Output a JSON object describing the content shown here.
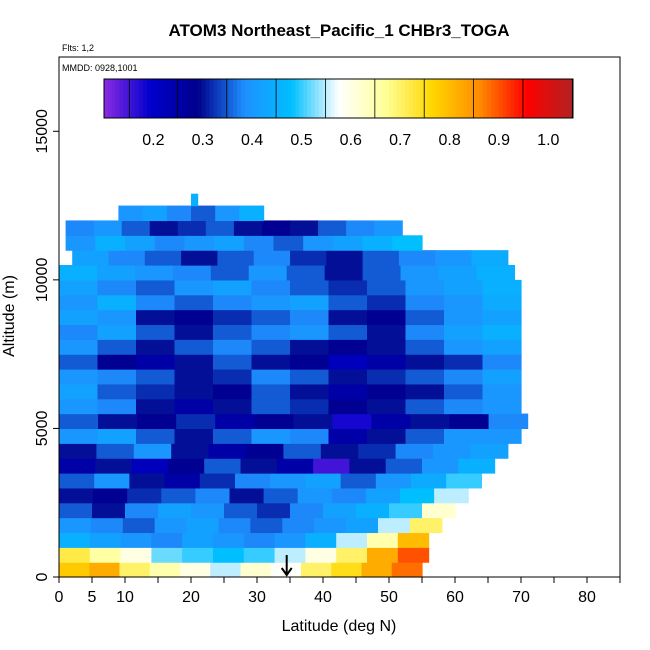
{
  "chart_data": {
    "type": "heatmap",
    "title": "ATOM3 Northeast_Pacific_1 CHBr3_TOGA",
    "flights_note": "Flts: 1,2",
    "dates_note": "MMDD: 0928,1001",
    "xlabel": "Latitude (deg N)",
    "ylabel": "Altitude (m)",
    "xlim": [
      0,
      85
    ],
    "ylim": [
      0,
      17500
    ],
    "x_ticks": [
      0,
      5,
      10,
      20,
      30,
      40,
      50,
      60,
      70,
      80
    ],
    "x_tick_labels": [
      "0",
      "5",
      "10",
      "20",
      "30",
      "40",
      "50",
      "60",
      "70",
      "80"
    ],
    "x_minor_ticks": [
      15,
      25,
      35,
      45,
      55,
      65,
      75,
      85
    ],
    "y_ticks": [
      0,
      5000,
      10000,
      15000
    ],
    "y_tick_labels": [
      "0",
      "5000",
      "10000",
      "15000"
    ],
    "colorbar": {
      "min": 0.1,
      "max": 1.05,
      "ticks": [
        0.2,
        0.3,
        0.4,
        0.5,
        0.6,
        0.7,
        0.8,
        0.9,
        1.0
      ],
      "tick_labels": [
        "0.2",
        "0.3",
        "0.4",
        "0.5",
        "0.6",
        "0.7",
        "0.8",
        "0.9",
        "1.0"
      ],
      "colors": [
        "#8a2be2",
        "#0000cd",
        "#00008b",
        "#1e90ff",
        "#00bfff",
        "#ffffff",
        "#ffff99",
        "#ffd700",
        "#ff8c00",
        "#ff0000",
        "#b22222"
      ]
    },
    "arrow_marker": {
      "latitude": 34.5,
      "altitude": 0
    },
    "altitude_bands": [
      {
        "alt": [
          0,
          500
        ],
        "lat": [
          0,
          55
        ],
        "values": [
          0.78,
          0.82,
          0.7,
          0.65,
          0.6,
          0.55,
          0.62,
          0.58,
          0.7,
          0.75,
          0.82,
          0.88
        ]
      },
      {
        "alt": [
          500,
          1000
        ],
        "lat": [
          0,
          56
        ],
        "values": [
          0.72,
          0.66,
          0.6,
          0.52,
          0.5,
          0.48,
          0.5,
          0.55,
          0.6,
          0.7,
          0.82,
          0.9
        ]
      },
      {
        "alt": [
          1000,
          1500
        ],
        "lat": [
          0,
          56
        ],
        "values": [
          0.45,
          0.42,
          0.4,
          0.38,
          0.42,
          0.4,
          0.38,
          0.4,
          0.45,
          0.55,
          0.65,
          0.8
        ]
      },
      {
        "alt": [
          1500,
          2000
        ],
        "lat": [
          0,
          58
        ],
        "values": [
          0.4,
          0.38,
          0.35,
          0.4,
          0.42,
          0.38,
          0.35,
          0.38,
          0.4,
          0.42,
          0.55,
          0.7
        ]
      },
      {
        "alt": [
          2000,
          2500
        ],
        "lat": [
          0,
          60
        ],
        "values": [
          0.35,
          0.3,
          0.38,
          0.42,
          0.4,
          0.35,
          0.32,
          0.38,
          0.42,
          0.45,
          0.5,
          0.62
        ]
      },
      {
        "alt": [
          2500,
          3000
        ],
        "lat": [
          0,
          62
        ],
        "values": [
          0.3,
          0.28,
          0.32,
          0.35,
          0.38,
          0.3,
          0.35,
          0.4,
          0.38,
          0.42,
          0.48,
          0.55
        ]
      },
      {
        "alt": [
          3000,
          3500
        ],
        "lat": [
          0,
          64
        ],
        "values": [
          0.35,
          0.4,
          0.3,
          0.25,
          0.32,
          0.38,
          0.4,
          0.42,
          0.35,
          0.4,
          0.44,
          0.5
        ]
      },
      {
        "alt": [
          3500,
          4000
        ],
        "lat": [
          0,
          66
        ],
        "values": [
          0.25,
          0.3,
          0.22,
          0.28,
          0.35,
          0.3,
          0.25,
          0.15,
          0.3,
          0.35,
          0.4,
          0.45
        ]
      },
      {
        "alt": [
          4000,
          4500
        ],
        "lat": [
          0,
          68
        ],
        "values": [
          0.3,
          0.35,
          0.4,
          0.3,
          0.25,
          0.28,
          0.35,
          0.3,
          0.32,
          0.38,
          0.4,
          0.42
        ]
      },
      {
        "alt": [
          4500,
          5000
        ],
        "lat": [
          0,
          70
        ],
        "values": [
          0.4,
          0.42,
          0.35,
          0.3,
          0.35,
          0.4,
          0.38,
          0.25,
          0.3,
          0.35,
          0.4,
          0.4
        ]
      },
      {
        "alt": [
          5000,
          5500
        ],
        "lat": [
          0,
          71
        ],
        "values": [
          0.35,
          0.3,
          0.28,
          0.32,
          0.25,
          0.28,
          0.3,
          0.18,
          0.25,
          0.3,
          0.28,
          0.38
        ]
      },
      {
        "alt": [
          5500,
          6000
        ],
        "lat": [
          0,
          70
        ],
        "values": [
          0.4,
          0.38,
          0.3,
          0.25,
          0.3,
          0.35,
          0.32,
          0.28,
          0.3,
          0.35,
          0.38,
          0.4
        ]
      },
      {
        "alt": [
          6000,
          6500
        ],
        "lat": [
          0,
          70
        ],
        "values": [
          0.42,
          0.35,
          0.32,
          0.3,
          0.28,
          0.35,
          0.3,
          0.25,
          0.28,
          0.3,
          0.35,
          0.4
        ]
      },
      {
        "alt": [
          6500,
          7000
        ],
        "lat": [
          0,
          70
        ],
        "values": [
          0.4,
          0.38,
          0.35,
          0.3,
          0.32,
          0.38,
          0.35,
          0.3,
          0.32,
          0.35,
          0.38,
          0.42
        ]
      },
      {
        "alt": [
          7000,
          7500
        ],
        "lat": [
          0,
          70
        ],
        "values": [
          0.35,
          0.28,
          0.25,
          0.3,
          0.35,
          0.3,
          0.28,
          0.22,
          0.25,
          0.3,
          0.32,
          0.38
        ]
      },
      {
        "alt": [
          7500,
          8000
        ],
        "lat": [
          0,
          70
        ],
        "values": [
          0.4,
          0.35,
          0.3,
          0.35,
          0.38,
          0.35,
          0.3,
          0.28,
          0.3,
          0.35,
          0.4,
          0.42
        ]
      },
      {
        "alt": [
          8000,
          8500
        ],
        "lat": [
          0,
          70
        ],
        "values": [
          0.38,
          0.42,
          0.35,
          0.3,
          0.35,
          0.38,
          0.4,
          0.35,
          0.3,
          0.38,
          0.42,
          0.45
        ]
      },
      {
        "alt": [
          8500,
          9000
        ],
        "lat": [
          0,
          70
        ],
        "values": [
          0.42,
          0.4,
          0.3,
          0.28,
          0.32,
          0.35,
          0.38,
          0.3,
          0.28,
          0.35,
          0.4,
          0.42
        ]
      },
      {
        "alt": [
          9000,
          9500
        ],
        "lat": [
          0,
          70
        ],
        "values": [
          0.4,
          0.45,
          0.38,
          0.35,
          0.38,
          0.4,
          0.42,
          0.35,
          0.32,
          0.38,
          0.4,
          0.44
        ]
      },
      {
        "alt": [
          9500,
          10000
        ],
        "lat": [
          0,
          70
        ],
        "values": [
          0.42,
          0.38,
          0.35,
          0.4,
          0.42,
          0.38,
          0.35,
          0.32,
          0.35,
          0.4,
          0.42,
          0.45
        ]
      },
      {
        "alt": [
          10000,
          10500
        ],
        "lat": [
          0,
          69
        ],
        "values": [
          0.45,
          0.42,
          0.4,
          0.38,
          0.35,
          0.4,
          0.35,
          0.3,
          0.35,
          0.4,
          0.42,
          0.45
        ]
      },
      {
        "alt": [
          10500,
          11000
        ],
        "lat": [
          2,
          68
        ],
        "values": [
          0.42,
          0.38,
          0.35,
          0.3,
          0.35,
          0.38,
          0.32,
          0.3,
          0.35,
          0.38,
          0.4,
          0.44
        ]
      },
      {
        "alt": [
          11000,
          11500
        ],
        "lat": [
          1,
          55
        ],
        "values": [
          0.4,
          0.45,
          0.42,
          0.38,
          0.4,
          0.42,
          0.38,
          0.35,
          0.4,
          0.42,
          0.45,
          0.48
        ]
      },
      {
        "alt": [
          11500,
          12000
        ],
        "lat": [
          1,
          52
        ],
        "values": [
          0.38,
          0.4,
          0.35,
          0.3,
          0.32,
          0.35,
          0.3,
          0.28,
          0.3,
          0.35,
          0.38,
          0.4
        ]
      },
      {
        "alt": [
          12000,
          12500
        ],
        "lat": [
          9,
          31
        ],
        "values": [
          0.4,
          0.42,
          0.38,
          0.35,
          0.4,
          0.45
        ]
      },
      {
        "alt": [
          12500,
          12900
        ],
        "lat": [
          20,
          21
        ],
        "values": [
          0.45
        ]
      }
    ]
  }
}
